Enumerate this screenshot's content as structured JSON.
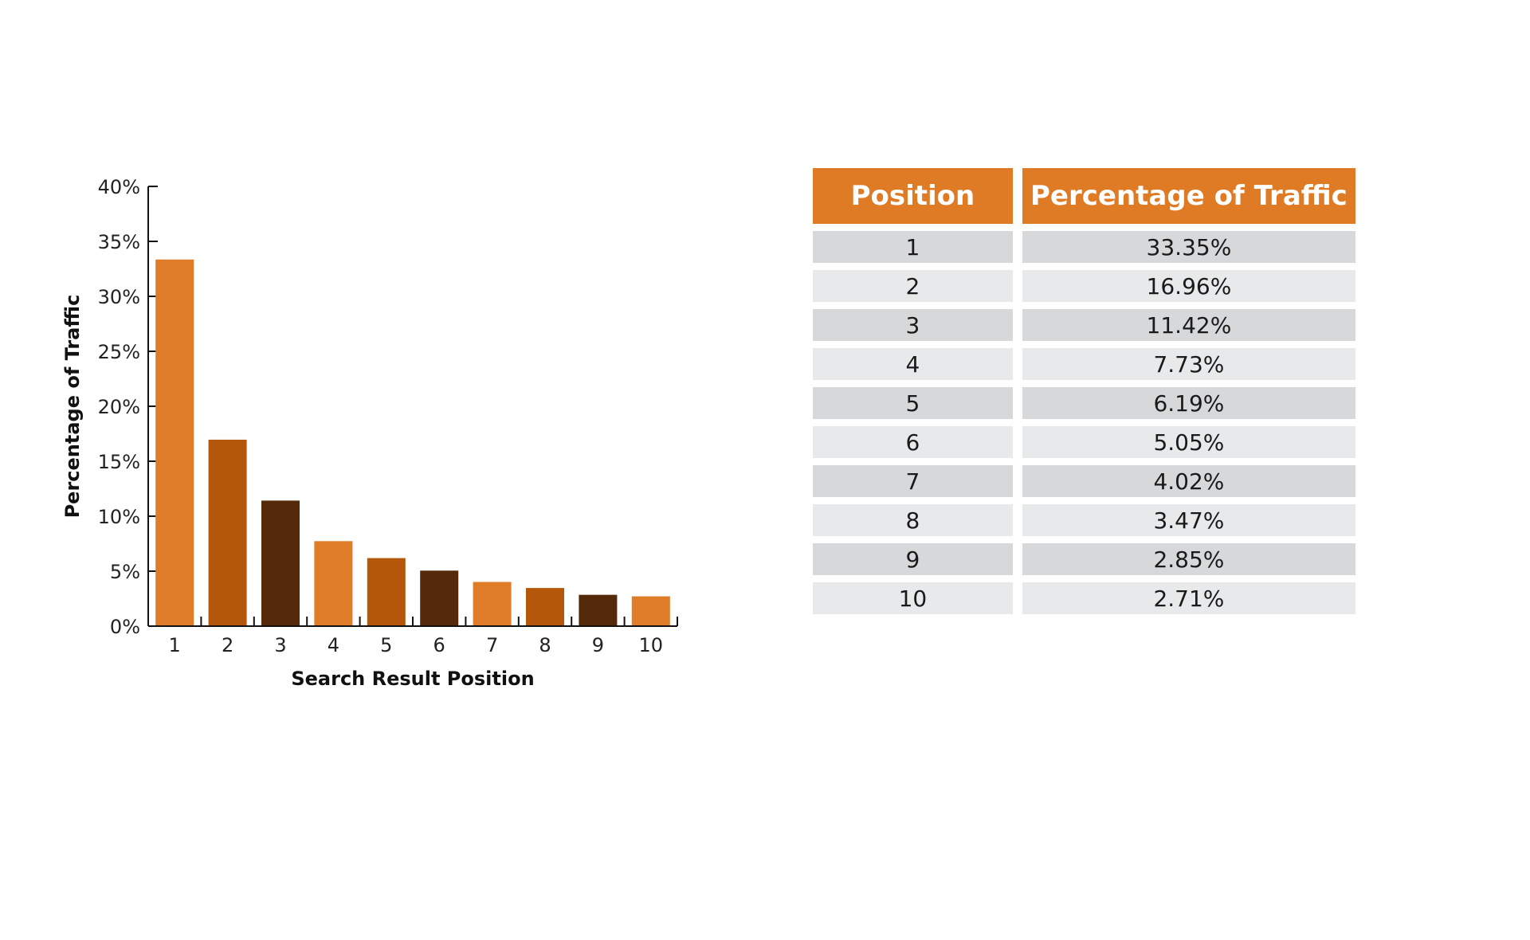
{
  "chart_data": {
    "type": "bar",
    "xlabel": "Search Result Position",
    "ylabel": "Percentage of Traffic",
    "ylim": [
      0,
      40
    ],
    "yticks": [
      "0%",
      "5%",
      "10%",
      "15%",
      "20%",
      "25%",
      "30%",
      "35%",
      "40%"
    ],
    "categories": [
      "1",
      "2",
      "3",
      "4",
      "5",
      "6",
      "7",
      "8",
      "9",
      "10"
    ],
    "values": [
      33.35,
      16.96,
      11.42,
      7.73,
      6.19,
      5.05,
      4.02,
      3.47,
      2.85,
      2.71
    ],
    "bar_colors": [
      "#de7c27",
      "#b4570a",
      "#542a0b",
      "#de7c27",
      "#b4570a",
      "#542a0b",
      "#de7c27",
      "#b4570a",
      "#542a0b",
      "#de7c27"
    ],
    "grid": false,
    "legend": "none"
  },
  "table": {
    "header_color": "#df7a25",
    "headers": [
      "Position",
      "Percentage of Traffic"
    ],
    "rows": [
      [
        "1",
        "33.35%"
      ],
      [
        "2",
        "16.96%"
      ],
      [
        "3",
        "11.42%"
      ],
      [
        "4",
        "7.73%"
      ],
      [
        "5",
        "6.19%"
      ],
      [
        "6",
        "5.05%"
      ],
      [
        "7",
        "4.02%"
      ],
      [
        "8",
        "3.47%"
      ],
      [
        "9",
        "2.85%"
      ],
      [
        "10",
        "2.71%"
      ]
    ]
  }
}
